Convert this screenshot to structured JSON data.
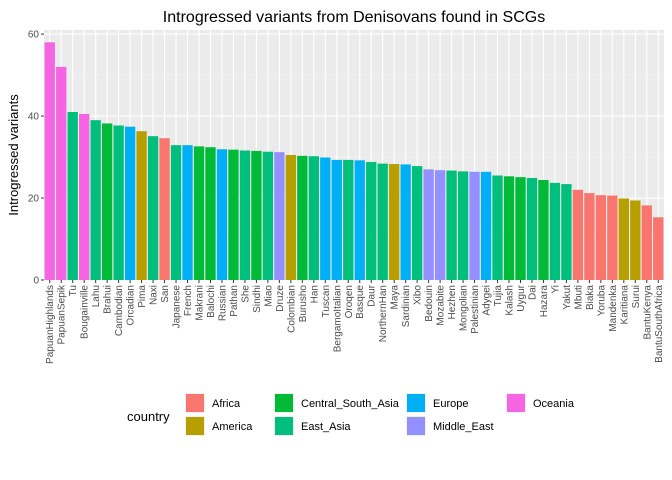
{
  "chart_data": {
    "type": "bar",
    "title": "Introgressed variants from Denisovans found in SCGs",
    "xlabel": "",
    "ylabel": "Introgressed variants",
    "ylim": [
      0,
      61
    ],
    "yticks": [
      0,
      20,
      40,
      60
    ],
    "grid": true,
    "legend": {
      "title": "country",
      "placement": "bottom",
      "entries": [
        {
          "name": "Africa",
          "color": "#F8766D"
        },
        {
          "name": "America",
          "color": "#B79F00"
        },
        {
          "name": "Central_South_Asia",
          "color": "#00BA38"
        },
        {
          "name": "East_Asia",
          "color": "#00BF7D"
        },
        {
          "name": "Europe",
          "color": "#00B0F6"
        },
        {
          "name": "Middle_East",
          "color": "#9590FF"
        },
        {
          "name": "Oceania",
          "color": "#F564E3"
        }
      ]
    },
    "bars": [
      {
        "category": "PapuanHighlands",
        "value": 58,
        "group": "Oceania"
      },
      {
        "category": "PapuanSepik",
        "value": 52,
        "group": "Oceania"
      },
      {
        "category": "Tu",
        "value": 41,
        "group": "East_Asia"
      },
      {
        "category": "Bougainville",
        "value": 40.5,
        "group": "Oceania"
      },
      {
        "category": "Lahu",
        "value": 39,
        "group": "East_Asia"
      },
      {
        "category": "Brahui",
        "value": 38.2,
        "group": "Central_South_Asia"
      },
      {
        "category": "Cambodian",
        "value": 37.7,
        "group": "East_Asia"
      },
      {
        "category": "Orcadian",
        "value": 37.4,
        "group": "Europe"
      },
      {
        "category": "Pima",
        "value": 36.3,
        "group": "America"
      },
      {
        "category": "Naxi",
        "value": 35.1,
        "group": "East_Asia"
      },
      {
        "category": "San",
        "value": 34.6,
        "group": "Africa"
      },
      {
        "category": "Japanese",
        "value": 32.9,
        "group": "East_Asia"
      },
      {
        "category": "French",
        "value": 32.9,
        "group": "Europe"
      },
      {
        "category": "Makrani",
        "value": 32.6,
        "group": "Central_South_Asia"
      },
      {
        "category": "Balochi",
        "value": 32.4,
        "group": "Central_South_Asia"
      },
      {
        "category": "Russian",
        "value": 31.9,
        "group": "Europe"
      },
      {
        "category": "Pathan",
        "value": 31.8,
        "group": "Central_South_Asia"
      },
      {
        "category": "She",
        "value": 31.6,
        "group": "East_Asia"
      },
      {
        "category": "Sindhi",
        "value": 31.5,
        "group": "Central_South_Asia"
      },
      {
        "category": "Miao",
        "value": 31.3,
        "group": "East_Asia"
      },
      {
        "category": "Druze",
        "value": 31.2,
        "group": "Middle_East"
      },
      {
        "category": "Colombian",
        "value": 30.5,
        "group": "America"
      },
      {
        "category": "Burusho",
        "value": 30.3,
        "group": "Central_South_Asia"
      },
      {
        "category": "Han",
        "value": 30.2,
        "group": "East_Asia"
      },
      {
        "category": "Tuscan",
        "value": 29.9,
        "group": "Europe"
      },
      {
        "category": "BergamoItalian",
        "value": 29.3,
        "group": "Europe"
      },
      {
        "category": "Oroqen",
        "value": 29.3,
        "group": "East_Asia"
      },
      {
        "category": "Basque",
        "value": 29.2,
        "group": "Europe"
      },
      {
        "category": "Daur",
        "value": 28.8,
        "group": "East_Asia"
      },
      {
        "category": "NorthernHan",
        "value": 28.4,
        "group": "East_Asia"
      },
      {
        "category": "Maya",
        "value": 28.3,
        "group": "America"
      },
      {
        "category": "Sardinian",
        "value": 28.2,
        "group": "Europe"
      },
      {
        "category": "Xibo",
        "value": 27.8,
        "group": "East_Asia"
      },
      {
        "category": "Bedouin",
        "value": 27,
        "group": "Middle_East"
      },
      {
        "category": "Mozabite",
        "value": 26.8,
        "group": "Middle_East"
      },
      {
        "category": "Hezhen",
        "value": 26.7,
        "group": "East_Asia"
      },
      {
        "category": "Mongolian",
        "value": 26.5,
        "group": "East_Asia"
      },
      {
        "category": "Palestinian",
        "value": 26.4,
        "group": "Middle_East"
      },
      {
        "category": "Adygei",
        "value": 26.4,
        "group": "Europe"
      },
      {
        "category": "Tujia",
        "value": 25.5,
        "group": "East_Asia"
      },
      {
        "category": "Kalash",
        "value": 25.3,
        "group": "Central_South_Asia"
      },
      {
        "category": "Uygur",
        "value": 25.1,
        "group": "Central_South_Asia"
      },
      {
        "category": "Dai",
        "value": 24.9,
        "group": "East_Asia"
      },
      {
        "category": "Hazara",
        "value": 24.4,
        "group": "Central_South_Asia"
      },
      {
        "category": "Yi",
        "value": 23.7,
        "group": "East_Asia"
      },
      {
        "category": "Yakut",
        "value": 23.4,
        "group": "East_Asia"
      },
      {
        "category": "Mbuti",
        "value": 22,
        "group": "Africa"
      },
      {
        "category": "Biaka",
        "value": 21.2,
        "group": "Africa"
      },
      {
        "category": "Yoruba",
        "value": 20.7,
        "group": "Africa"
      },
      {
        "category": "Mandenka",
        "value": 20.6,
        "group": "Africa"
      },
      {
        "category": "Karitiana",
        "value": 19.9,
        "group": "America"
      },
      {
        "category": "Surui",
        "value": 19.4,
        "group": "America"
      },
      {
        "category": "BantuKenya",
        "value": 18.2,
        "group": "Africa"
      },
      {
        "category": "BantuSouthAfrica",
        "value": 15.3,
        "group": "Africa"
      }
    ]
  }
}
